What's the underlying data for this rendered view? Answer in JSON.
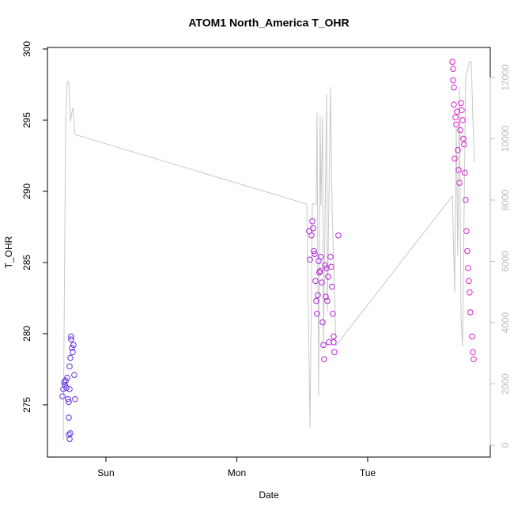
{
  "chart_data": {
    "type": "scatter",
    "title": "ATOM1 North_America T_OHR",
    "xlabel": "Date",
    "ylabel": "T_OHR",
    "xlim": [
      0.553,
      3.937
    ],
    "xticks": [
      {
        "value": 1,
        "label": "Sun"
      },
      {
        "value": 2,
        "label": "Mon"
      },
      {
        "value": 3,
        "label": "Tue"
      }
    ],
    "ylim": [
      271.33,
      300.11
    ],
    "yticks": [
      275,
      280,
      285,
      290,
      295,
      300
    ],
    "y2lim": [
      -387,
      12981
    ],
    "y2ticks": [
      0,
      2000,
      4000,
      6000,
      8000,
      10000,
      12000
    ],
    "color_gradient": [
      "#5b2de3",
      "#e61ed2"
    ],
    "series": [
      {
        "x": [
          0.668,
          0.674,
          0.68,
          0.686,
          0.692,
          0.698,
          0.704,
          0.71,
          0.716,
          0.716,
          0.722,
          0.722,
          0.728,
          0.734,
          0.734,
          0.74,
          0.746,
          0.752,
          0.758,
          0.764,
          0.722,
          0.716,
          0.728,
          2.553,
          2.559,
          2.571,
          2.577,
          2.583,
          2.589,
          2.595,
          2.601,
          2.607,
          2.613,
          2.619,
          2.625,
          2.631,
          2.637,
          2.643,
          2.65,
          2.656,
          2.662,
          2.668,
          2.674,
          2.68,
          2.686,
          2.692,
          2.698,
          2.704,
          2.716,
          2.722,
          2.728,
          2.734,
          2.74,
          2.746,
          2.776,
          2.74,
          3.647,
          3.653,
          3.653,
          3.659,
          3.659,
          3.665,
          3.671,
          3.677,
          3.683,
          3.689,
          3.695,
          3.701,
          3.707,
          3.713,
          3.719,
          3.725,
          3.731,
          3.737,
          3.743,
          3.749,
          3.755,
          3.761,
          3.767,
          3.773,
          3.779,
          3.785,
          3.798,
          3.804,
          3.81
        ],
        "values": [
          275.6,
          276.1,
          276.6,
          276.4,
          276.7,
          276.2,
          276.9,
          275.4,
          274.1,
          272.9,
          272.6,
          277.7,
          278.3,
          279.6,
          279.8,
          279.0,
          278.7,
          279.2,
          277.1,
          275.4,
          276.1,
          275.2,
          273.0,
          287.2,
          285.2,
          286.9,
          287.9,
          287.4,
          285.8,
          285.6,
          283.7,
          282.3,
          281.4,
          282.7,
          285.1,
          284.3,
          284.4,
          285.4,
          283.6,
          280.8,
          279.2,
          278.2,
          284.8,
          282.6,
          284.6,
          282.3,
          284.0,
          279.4,
          285.4,
          284.7,
          283.3,
          281.4,
          279.8,
          278.7,
          286.9,
          279.4,
          299.1,
          298.6,
          297.8,
          297.3,
          296.1,
          292.3,
          295.2,
          294.7,
          295.6,
          292.9,
          291.5,
          290.6,
          294.3,
          296.2,
          295.7,
          295.0,
          293.7,
          293.3,
          291.3,
          289.4,
          287.2,
          285.8,
          284.6,
          283.7,
          282.9,
          281.5,
          279.8,
          278.7,
          278.2
        ]
      },
      {
        "type": "line",
        "axis": "y2",
        "color": "#c8c8c8",
        "x": [
          0.674,
          0.692,
          0.704,
          0.716,
          0.722,
          0.728,
          0.746,
          0.764,
          2.535,
          2.559,
          2.577,
          2.607,
          2.613,
          2.625,
          2.637,
          2.643,
          2.656,
          2.662,
          2.686,
          2.692,
          2.716,
          2.728,
          2.752,
          2.758,
          3.647,
          3.665,
          3.677,
          3.689,
          3.701,
          3.713,
          3.725,
          3.749,
          3.779,
          3.792,
          3.804,
          3.816
        ],
        "values": [
          155,
          10400,
          11870,
          11870,
          11350,
          10560,
          11020,
          10140,
          7870,
          590,
          7870,
          7870,
          10860,
          1620,
          10760,
          7820,
          10710,
          3170,
          11460,
          4340,
          11690,
          7740,
          4260,
          3250,
          8130,
          4980,
          10400,
          6170,
          11690,
          4200,
          3230,
          12000,
          12520,
          12520,
          10660,
          9240
        ]
      }
    ]
  }
}
